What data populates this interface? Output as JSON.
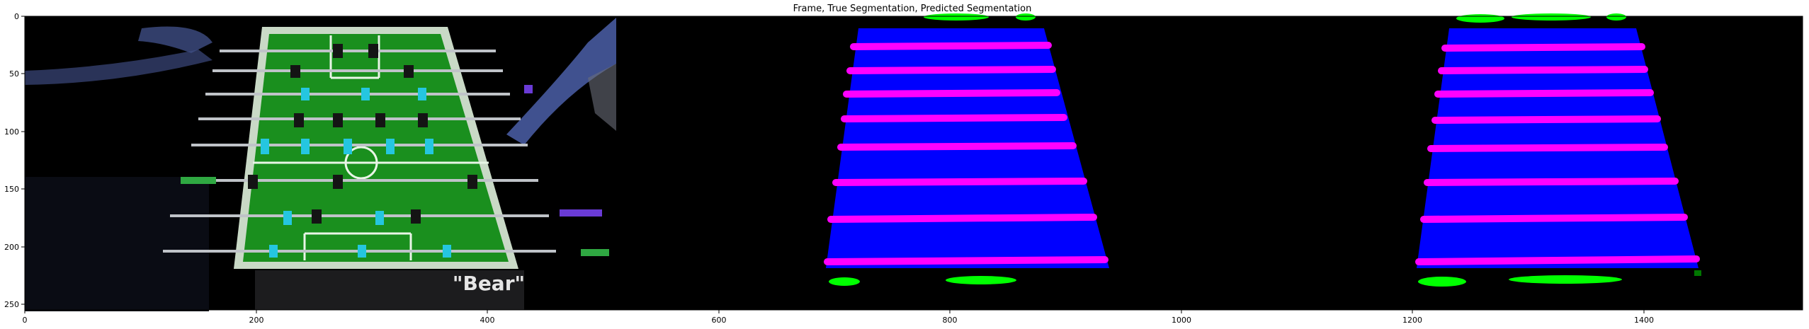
{
  "figure": {
    "title": "Frame, True Segmentation, Predicted Segmentation",
    "panels": [
      "frame",
      "true-segmentation",
      "predicted-segmentation"
    ],
    "x_ticks": [
      "0",
      "200",
      "400",
      "600",
      "800",
      "1000",
      "1200",
      "1400"
    ],
    "y_ticks": [
      "0",
      "50",
      "100",
      "150",
      "200",
      "250"
    ],
    "frame_text": "\"Bear\""
  },
  "colors": {
    "table": "#1a8f1e",
    "rod": "#ff00ff",
    "goal": "#00ff00",
    "field_seg": "#0000ff",
    "background": "#000000"
  }
}
